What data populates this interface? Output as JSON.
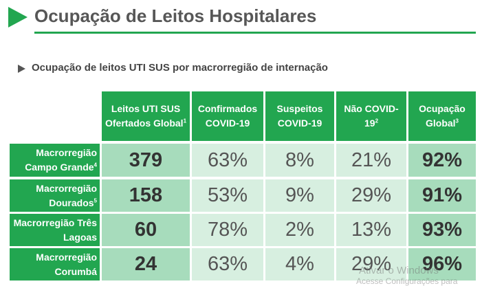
{
  "header": {
    "title": "Ocupação de Leitos Hospitalares",
    "subtitle": "Ocupação de leitos UTI SUS por macrorregião de internação"
  },
  "table": {
    "columns": [
      {
        "text": "Leitos UTI SUS Ofertados Global",
        "sup": "1"
      },
      {
        "text": "Confirmados COVID-19"
      },
      {
        "text": "Suspeitos COVID-19"
      },
      {
        "text": "Não COVID-19",
        "sup": "2"
      },
      {
        "text": "Ocupação Global",
        "sup": "3"
      }
    ],
    "rows": [
      {
        "label": "Macrorregião Campo Grande",
        "sup": "4",
        "cells": [
          "379",
          "63%",
          "8%",
          "21%",
          "92%"
        ]
      },
      {
        "label": "Macrorregião Dourados",
        "sup": "5",
        "cells": [
          "158",
          "53%",
          "9%",
          "29%",
          "91%"
        ]
      },
      {
        "label": "Macrorregião Três Lagoas",
        "cells": [
          "60",
          "78%",
          "2%",
          "13%",
          "93%"
        ]
      },
      {
        "label": "Macrorregião Corumbá",
        "cells": [
          "24",
          "63%",
          "4%",
          "29%",
          "96%"
        ]
      }
    ]
  },
  "watermark": [
    "Ativar o Windows",
    "Acesse Configurações para"
  ]
}
